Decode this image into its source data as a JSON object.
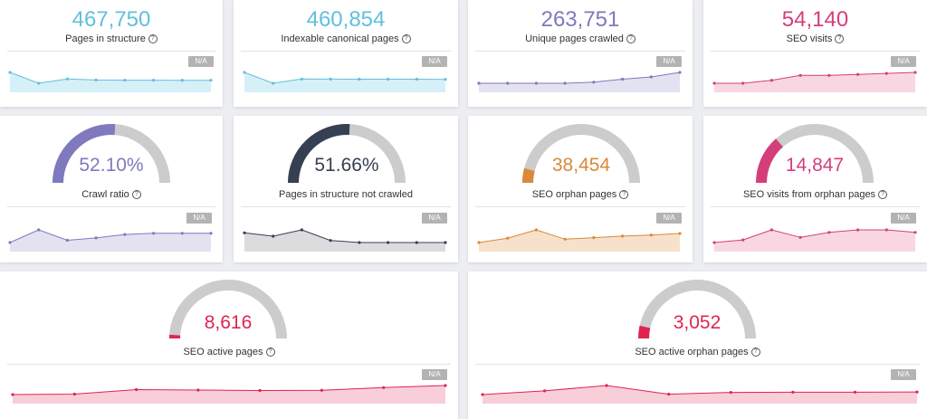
{
  "help_glyph": "?",
  "na_label": "N/A",
  "colors": {
    "blue": "#62bfdc",
    "purple": "#7e7abd",
    "pink": "#d43f7b",
    "dark": "#354052",
    "orange": "#d9893a",
    "red": "#e0244f",
    "track": "#cccccc"
  },
  "row1": [
    {
      "value": "467,750",
      "label": "Pages in structure",
      "color": "#62bfdc",
      "fill": "#d6f0f8"
    },
    {
      "value": "460,854",
      "label": "Indexable canonical pages",
      "color": "#62bfdc",
      "fill": "#d6f0f8"
    },
    {
      "value": "263,751",
      "label": "Unique pages crawled",
      "color": "#7e7abd",
      "fill": "#e3e2f1"
    },
    {
      "value": "54,140",
      "label": "SEO visits",
      "color": "#d43f7b",
      "fill": "#f8d7e3"
    }
  ],
  "row2": [
    {
      "value": "52.10%",
      "label": "Crawl ratio",
      "help": true,
      "color": "#7e7abd",
      "fill": "#e3e2f1",
      "percent": 52.1
    },
    {
      "value": "51.66%",
      "label": "Pages in structure not crawled",
      "help": false,
      "color": "#354052",
      "fill": "#dcdcde",
      "percent": 51.66
    },
    {
      "value": "38,454",
      "label": "SEO orphan pages",
      "help": true,
      "color": "#d9893a",
      "fill": "#f7e1cb",
      "percent": 8
    },
    {
      "value": "14,847",
      "label": "SEO visits from orphan pages",
      "help": true,
      "color": "#d43f7b",
      "fill": "#f8d7e3",
      "percent": 27
    }
  ],
  "row3": [
    {
      "value": "8,616",
      "label": "SEO active pages",
      "color": "#e0244f",
      "fill": "#f8ced9",
      "percent": 2
    },
    {
      "value": "3,052",
      "label": "SEO active orphan pages",
      "color": "#e0244f",
      "fill": "#f8ced9",
      "percent": 7
    }
  ],
  "chart_data": [
    {
      "type": "area",
      "title": "Pages in structure",
      "values": [
        467750,
        459000,
        462500,
        461600,
        461500,
        461500,
        461400,
        461400
      ]
    },
    {
      "type": "area",
      "title": "Indexable canonical pages",
      "values": [
        460854,
        452500,
        455800,
        455700,
        455600,
        455600,
        455600,
        455500
      ]
    },
    {
      "type": "area",
      "title": "Unique pages crawled",
      "values": [
        263751,
        263751,
        263751,
        263751,
        263900,
        264300,
        264600,
        265200
      ]
    },
    {
      "type": "area",
      "title": "SEO visits",
      "values": [
        54140,
        54140,
        54200,
        54300,
        54300,
        54320,
        54340,
        54360
      ]
    },
    {
      "type": "area",
      "title": "Crawl ratio",
      "values": [
        52.1,
        53.2,
        52.3,
        52.5,
        52.8,
        52.9,
        52.9,
        52.9
      ]
    },
    {
      "type": "area",
      "title": "Pages in structure not crawled",
      "values": [
        51.66,
        51.5,
        51.8,
        51.3,
        51.2,
        51.2,
        51.2,
        51.2
      ]
    },
    {
      "type": "area",
      "title": "SEO orphan pages",
      "values": [
        38454,
        39300,
        40900,
        39100,
        39400,
        39700,
        39900,
        40200
      ]
    },
    {
      "type": "area",
      "title": "SEO visits from orphan pages",
      "values": [
        14847,
        14900,
        15100,
        14950,
        15050,
        15100,
        15100,
        15050
      ]
    },
    {
      "type": "area",
      "title": "SEO active pages",
      "values": [
        8616,
        8618,
        8640,
        8638,
        8636,
        8637,
        8650,
        8660
      ]
    },
    {
      "type": "area",
      "title": "SEO active orphan pages",
      "values": [
        3052,
        3080,
        3120,
        3055,
        3068,
        3070,
        3070,
        3072
      ]
    }
  ]
}
